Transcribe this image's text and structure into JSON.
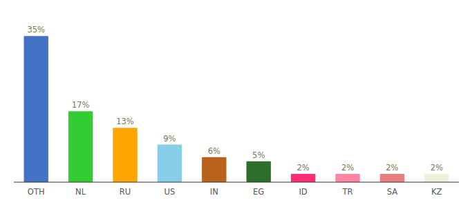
{
  "chart_data": {
    "type": "bar",
    "categories": [
      "OTH",
      "NL",
      "RU",
      "US",
      "IN",
      "EG",
      "ID",
      "TR",
      "SA",
      "KZ"
    ],
    "values": [
      35,
      17,
      13,
      9,
      6,
      5,
      2,
      2,
      2,
      2
    ],
    "value_labels": [
      "35%",
      "17%",
      "13%",
      "9%",
      "6%",
      "5%",
      "2%",
      "2%",
      "2%",
      "2%"
    ],
    "colors": [
      "#4472c4",
      "#33cc33",
      "#ffa500",
      "#87ceeb",
      "#b8621b",
      "#2d6e2d",
      "#ff2d78",
      "#ff85a2",
      "#e88080",
      "#f0f0d8"
    ],
    "ylim": [
      0,
      40
    ],
    "data_labels": true,
    "tick_labels": "x"
  }
}
